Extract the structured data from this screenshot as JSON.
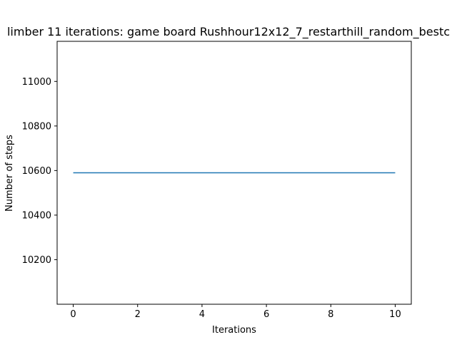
{
  "chart_data": {
    "type": "line",
    "title": "limber 11 iterations: game board Rushhour12x12_7_restarthill_random_bestc",
    "xlabel": "Iterations",
    "ylabel": "Number of steps",
    "xlim": [
      -0.5,
      10.5
    ],
    "ylim": [
      10000,
      11180
    ],
    "xticks": [
      0,
      2,
      4,
      6,
      8,
      10
    ],
    "yticks": [
      10200,
      10400,
      10600,
      10800,
      11000
    ],
    "xtick_labels": [
      "0",
      "2",
      "4",
      "6",
      "8",
      "10"
    ],
    "ytick_labels": [
      "10200",
      "10400",
      "10600",
      "10800",
      "11000"
    ],
    "grid": false,
    "series": [
      {
        "color": "#1f77b4",
        "x": [
          0,
          1,
          2,
          3,
          4,
          5,
          6,
          7,
          8,
          9,
          10
        ],
        "y": [
          10590,
          10590,
          10590,
          10590,
          10590,
          10590,
          10590,
          10590,
          10590,
          10590,
          10590
        ]
      }
    ]
  }
}
